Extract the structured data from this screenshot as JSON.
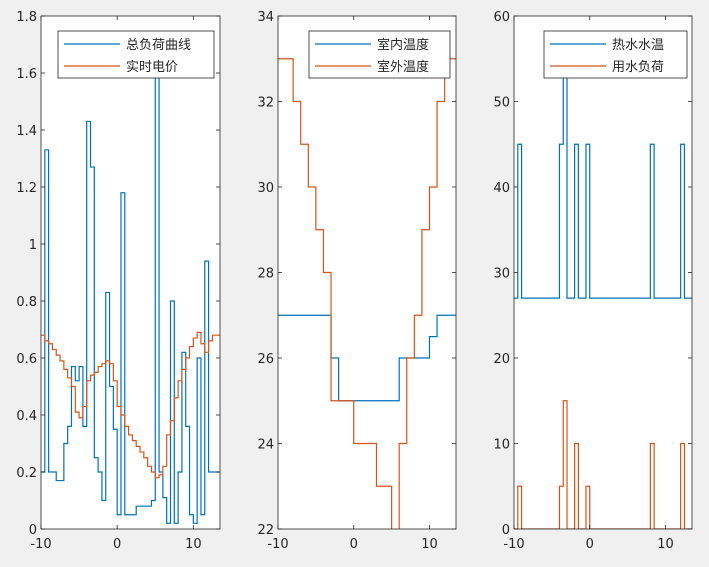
{
  "chart_data": [
    {
      "type": "line",
      "step": true,
      "xlim": [
        -10,
        13.5
      ],
      "ylim": [
        0,
        1.8
      ],
      "xticks": [
        -10,
        0,
        10
      ],
      "xtick_labels": [
        "-10",
        "0",
        "10"
      ],
      "yticks": [
        0,
        0.2,
        0.4,
        0.6,
        0.8,
        1,
        1.2,
        1.4,
        1.6,
        1.8
      ],
      "ytick_labels": [
        "0",
        "0.2",
        "0.4",
        "0.6",
        "0.8",
        "1",
        "1.2",
        "1.4",
        "1.6",
        "1.8"
      ],
      "legend_position": "top-right",
      "x": [
        -10,
        -9.5,
        -9,
        -8.5,
        -8,
        -7.5,
        -7,
        -6.5,
        -6,
        -5.5,
        -5,
        -4.5,
        -4,
        -3.5,
        -3,
        -2.5,
        -2,
        -1.5,
        -1,
        -0.5,
        0,
        0.5,
        1,
        1.5,
        2,
        2.5,
        3,
        3.5,
        4,
        4.5,
        5,
        5.5,
        6,
        6.5,
        7,
        7.5,
        8,
        8.5,
        9,
        9.5,
        10,
        10.5,
        11,
        11.5,
        12,
        12.5,
        13,
        13.5
      ],
      "series": [
        {
          "name": "总负荷曲线",
          "color": "#0072BD",
          "values": [
            0.2,
            1.33,
            0.2,
            0.2,
            0.17,
            0.17,
            0.3,
            0.36,
            0.57,
            0.52,
            0.57,
            0.36,
            1.43,
            1.27,
            0.25,
            0.2,
            0.1,
            0.83,
            0.5,
            0.35,
            0.05,
            1.18,
            0.05,
            0.05,
            0.05,
            0.08,
            0.08,
            0.08,
            0.08,
            0.1,
            1.6,
            0.2,
            0.11,
            0.02,
            0.8,
            0.02,
            0.2,
            0.62,
            0.36,
            0.05,
            0.02,
            0.6,
            0.05,
            0.94,
            0.2,
            0.2,
            0.2,
            0.2
          ]
        },
        {
          "name": "实时电价",
          "color": "#D95319",
          "values": [
            0.68,
            0.66,
            0.65,
            0.63,
            0.61,
            0.59,
            0.56,
            0.53,
            0.5,
            0.41,
            0.39,
            0.43,
            0.52,
            0.54,
            0.55,
            0.57,
            0.58,
            0.59,
            0.58,
            0.52,
            0.43,
            0.4,
            0.36,
            0.33,
            0.31,
            0.29,
            0.27,
            0.25,
            0.22,
            0.2,
            0.18,
            0.19,
            0.22,
            0.33,
            0.38,
            0.46,
            0.52,
            0.56,
            0.6,
            0.64,
            0.67,
            0.69,
            0.65,
            0.62,
            0.66,
            0.68,
            0.68,
            0.68
          ]
        }
      ]
    },
    {
      "type": "line",
      "step": true,
      "xlim": [
        -10,
        13.5
      ],
      "ylim": [
        22,
        34
      ],
      "xticks": [
        -10,
        0,
        10
      ],
      "xtick_labels": [
        "-10",
        "0",
        "10"
      ],
      "yticks": [
        22,
        24,
        26,
        28,
        30,
        32,
        34
      ],
      "ytick_labels": [
        "22",
        "24",
        "26",
        "28",
        "30",
        "32",
        "34"
      ],
      "legend_position": "top-right",
      "x": [
        -10,
        -9,
        -8,
        -7,
        -6,
        -5,
        -4,
        -3,
        -2,
        -1,
        0,
        1,
        2,
        3,
        4,
        5,
        6,
        7,
        8,
        9,
        10,
        11,
        12,
        13
      ],
      "series": [
        {
          "name": "室内温度",
          "color": "#0072BD",
          "values": [
            27,
            27,
            27,
            27,
            27,
            27,
            27,
            26,
            25,
            25,
            25,
            25,
            25,
            25,
            25,
            25,
            26,
            26,
            26,
            26,
            26.5,
            27,
            27,
            27
          ]
        },
        {
          "name": "室外温度",
          "color": "#D95319",
          "values": [
            33,
            33,
            32,
            31,
            30,
            29,
            28,
            25,
            25,
            25,
            24,
            24,
            24,
            23,
            23,
            21,
            24,
            26,
            27,
            29,
            30,
            32,
            33,
            33
          ]
        }
      ]
    },
    {
      "type": "line",
      "step": true,
      "xlim": [
        -10,
        13.5
      ],
      "ylim": [
        0,
        60
      ],
      "xticks": [
        -10,
        0,
        10
      ],
      "xtick_labels": [
        "-10",
        "0",
        "10"
      ],
      "yticks": [
        0,
        10,
        20,
        30,
        40,
        50,
        60
      ],
      "ytick_labels": [
        "0",
        "10",
        "20",
        "30",
        "40",
        "50",
        "60"
      ],
      "legend_position": "top-right",
      "x": [
        -10,
        -9.5,
        -9,
        -8.5,
        -8,
        -7.5,
        -7,
        -6.5,
        -6,
        -5.5,
        -5,
        -4.5,
        -4,
        -3.5,
        -3,
        -2.5,
        -2,
        -1.5,
        -1,
        -0.5,
        0,
        0.5,
        1,
        1.5,
        2,
        2.5,
        3,
        3.5,
        4,
        4.5,
        5,
        5.5,
        6,
        6.5,
        7,
        7.5,
        8,
        8.5,
        9,
        9.5,
        10,
        10.5,
        11,
        11.5,
        12,
        12.5,
        13,
        13.5
      ],
      "series": [
        {
          "name": "热水水温",
          "color": "#0072BD",
          "values": [
            27,
            45,
            27,
            27,
            27,
            27,
            27,
            27,
            27,
            27,
            27,
            27,
            45,
            53,
            27,
            27,
            45,
            27,
            27,
            45,
            27,
            27,
            27,
            27,
            27,
            27,
            27,
            27,
            27,
            27,
            27,
            27,
            27,
            27,
            27,
            27,
            45,
            27,
            27,
            27,
            27,
            27,
            27,
            27,
            45,
            27,
            27,
            27
          ]
        },
        {
          "name": "用水负荷",
          "color": "#D95319",
          "values": [
            0,
            5,
            0,
            0,
            0,
            0,
            0,
            0,
            0,
            0,
            0,
            0,
            5,
            15,
            0,
            0,
            10,
            0,
            0,
            5,
            0,
            0,
            0,
            0,
            0,
            0,
            0,
            0,
            0,
            0,
            0,
            0,
            0,
            0,
            0,
            0,
            10,
            0,
            0,
            0,
            0,
            0,
            0,
            0,
            10,
            0,
            0,
            0
          ]
        }
      ]
    }
  ]
}
